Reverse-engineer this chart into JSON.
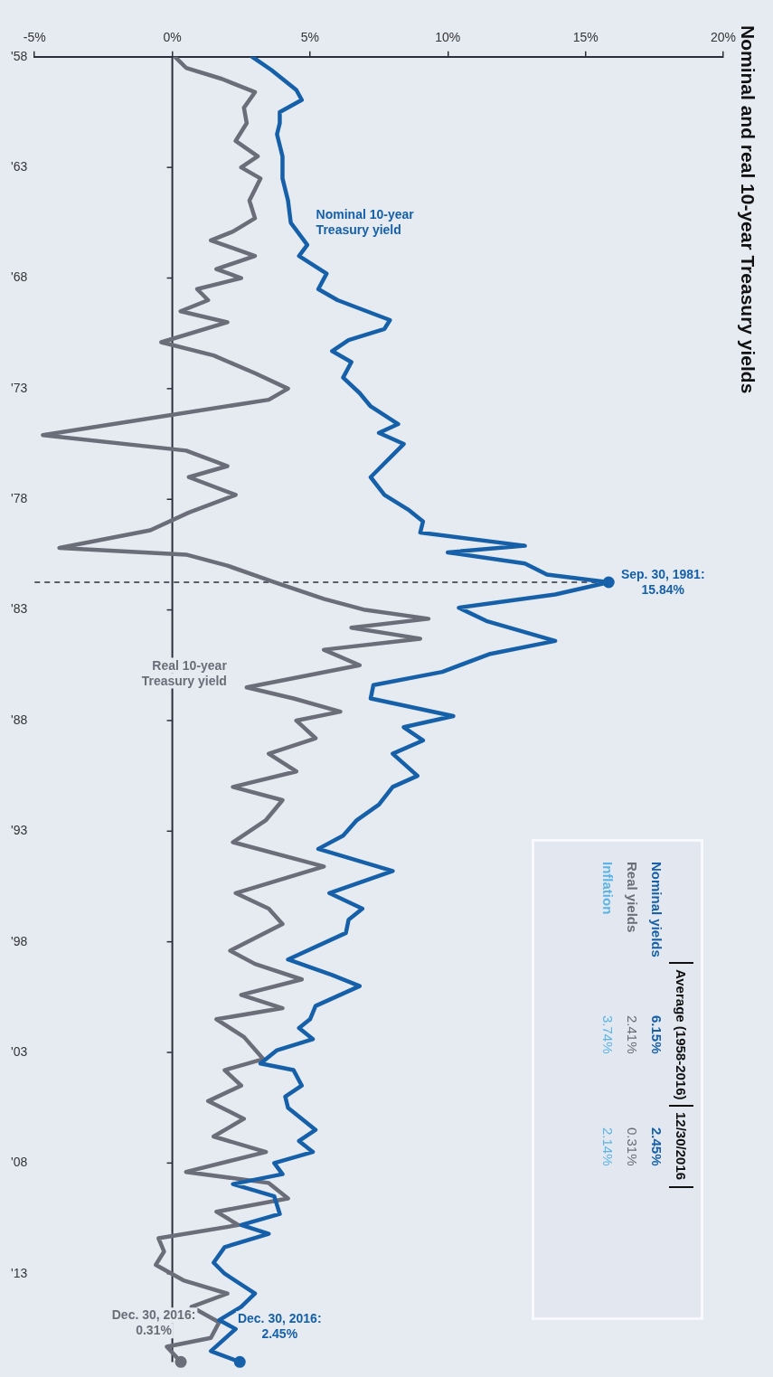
{
  "chart_data": [
    {
      "type": "line",
      "title": "Nominal and real 10-year Treasury yields",
      "orientation": "horizontal",
      "xlim": [
        -5,
        20
      ],
      "xticks": [
        {
          "value": -5,
          "label": "-5%"
        },
        {
          "value": 0,
          "label": "0%"
        },
        {
          "value": 5,
          "label": "5%"
        },
        {
          "value": 10,
          "label": "10%"
        },
        {
          "value": 15,
          "label": "15%"
        },
        {
          "value": 20,
          "label": "20%"
        }
      ],
      "ylim": [
        2017,
        1958
      ],
      "yticks": [
        {
          "value": 1958,
          "label": "'58"
        },
        {
          "value": 1963,
          "label": "'63"
        },
        {
          "value": 1968,
          "label": "'68"
        },
        {
          "value": 1973,
          "label": "'73"
        },
        {
          "value": 1978,
          "label": "'78"
        },
        {
          "value": 1983,
          "label": "'83"
        },
        {
          "value": 1988,
          "label": "'88"
        },
        {
          "value": 1993,
          "label": "'93"
        },
        {
          "value": 1998,
          "label": "'98"
        },
        {
          "value": 2003,
          "label": "'03"
        },
        {
          "value": 2008,
          "label": "'08"
        },
        {
          "value": 2013,
          "label": "'13"
        }
      ],
      "grid": false,
      "legend": false,
      "marker": "none",
      "line_style": "solid",
      "series": [
        {
          "name": "Nominal 10-year Treasury yield",
          "color": "#1560a8",
          "x": [
            1958.0,
            1958.6,
            1959.5,
            1959.95,
            1960.5,
            1961.0,
            1961.5,
            1962.5,
            1963.5,
            1964.5,
            1965.5,
            1966.5,
            1967.0,
            1967.8,
            1968.5,
            1969.0,
            1969.9,
            1970.3,
            1970.8,
            1971.3,
            1971.8,
            1972.5,
            1973.2,
            1973.8,
            1974.6,
            1975.0,
            1975.5,
            1976.5,
            1977.0,
            1977.8,
            1978.5,
            1979.0,
            1979.5,
            1980.1,
            1980.4,
            1980.9,
            1981.4,
            1981.75,
            1982.3,
            1982.9,
            1983.5,
            1984.4,
            1985.0,
            1985.8,
            1986.4,
            1987.0,
            1987.8,
            1988.3,
            1988.9,
            1989.5,
            1990.5,
            1991.0,
            1991.8,
            1992.5,
            1993.2,
            1993.8,
            1994.8,
            1995.8,
            1996.5,
            1997.0,
            1997.6,
            1998.8,
            1999.5,
            2000.0,
            2000.9,
            2001.5,
            2001.9,
            2002.4,
            2002.9,
            2003.5,
            2003.8,
            2004.5,
            2005.0,
            2005.5,
            2006.5,
            2007.0,
            2007.5,
            2008.0,
            2008.5,
            2008.95,
            2009.5,
            2010.3,
            2010.8,
            2011.2,
            2011.8,
            2012.5,
            2013.0,
            2013.9,
            2014.5,
            2015.1,
            2015.5,
            2016.5,
            2016.99
          ],
          "values": [
            2.9,
            3.6,
            4.5,
            4.7,
            3.9,
            3.9,
            3.8,
            4.0,
            4.0,
            4.2,
            4.3,
            4.9,
            4.6,
            5.6,
            5.3,
            6.0,
            7.9,
            7.7,
            6.4,
            5.8,
            6.5,
            6.2,
            6.8,
            7.2,
            8.2,
            7.5,
            8.4,
            7.6,
            7.2,
            7.7,
            8.6,
            9.1,
            9.0,
            12.8,
            10.0,
            12.8,
            13.6,
            15.84,
            13.9,
            10.4,
            11.4,
            13.9,
            11.5,
            9.8,
            7.3,
            7.2,
            10.2,
            8.4,
            9.1,
            8.0,
            8.9,
            8.0,
            7.5,
            6.7,
            6.2,
            5.3,
            8.0,
            5.7,
            6.9,
            6.4,
            6.3,
            4.2,
            5.8,
            6.8,
            5.2,
            5.0,
            4.6,
            5.1,
            3.8,
            3.2,
            4.4,
            4.7,
            4.1,
            4.2,
            5.2,
            4.6,
            5.1,
            3.7,
            4.0,
            2.2,
            3.7,
            3.9,
            2.5,
            3.5,
            1.9,
            1.5,
            1.9,
            3.0,
            2.5,
            1.7,
            2.3,
            1.4,
            2.45
          ]
        },
        {
          "name": "Real 10-year Treasury yield",
          "color": "#6b6d78",
          "x": [
            1958.0,
            1958.5,
            1959.0,
            1959.6,
            1960.3,
            1961.0,
            1961.8,
            1962.5,
            1963.0,
            1963.5,
            1964.5,
            1965.3,
            1965.9,
            1966.3,
            1967.0,
            1967.6,
            1968.0,
            1968.5,
            1969.0,
            1969.5,
            1970.0,
            1970.9,
            1971.5,
            1972.3,
            1973.0,
            1973.5,
            1975.1,
            1975.8,
            1976.5,
            1977.0,
            1977.8,
            1978.6,
            1979.4,
            1980.2,
            1980.5,
            1981.0,
            1981.75,
            1982.5,
            1983.0,
            1983.4,
            1983.8,
            1984.3,
            1984.8,
            1985.5,
            1986.5,
            1987.0,
            1987.6,
            1988.0,
            1988.8,
            1989.5,
            1990.3,
            1991.0,
            1991.6,
            1992.5,
            1993.5,
            1994.6,
            1995.8,
            1996.5,
            1997.2,
            1998.4,
            1999.0,
            1999.7,
            2000.4,
            2001.0,
            2001.5,
            2002.3,
            2003.3,
            2003.8,
            2004.5,
            2005.2,
            2006.0,
            2006.8,
            2007.5,
            2008.4,
            2008.9,
            2009.6,
            2010.2,
            2010.8,
            2011.4,
            2012.0,
            2012.6,
            2013.3,
            2013.9,
            2014.5,
            2015.2,
            2015.9,
            2016.3,
            2016.99
          ],
          "values": [
            0.1,
            0.5,
            1.8,
            3.0,
            2.6,
            2.7,
            2.3,
            3.1,
            2.5,
            3.2,
            2.8,
            3.0,
            2.2,
            1.4,
            3.0,
            1.6,
            2.5,
            0.9,
            1.3,
            0.3,
            2.0,
            -0.4,
            1.5,
            3.0,
            4.2,
            3.5,
            -4.7,
            0.5,
            2.0,
            0.6,
            2.3,
            0.6,
            -0.8,
            -4.1,
            0.5,
            2.0,
            3.7,
            5.5,
            7.0,
            9.3,
            6.5,
            9.0,
            5.5,
            6.8,
            2.7,
            4.4,
            6.1,
            4.5,
            5.2,
            3.5,
            4.5,
            2.2,
            4.0,
            3.4,
            2.2,
            5.5,
            2.3,
            3.5,
            4.0,
            2.1,
            3.0,
            4.7,
            2.5,
            4.0,
            1.6,
            2.6,
            3.3,
            1.9,
            2.5,
            1.3,
            2.6,
            1.5,
            3.4,
            0.5,
            3.5,
            4.2,
            1.6,
            2.4,
            -0.5,
            -0.3,
            -0.6,
            0.4,
            2.0,
            0.7,
            1.7,
            1.4,
            -0.2,
            0.31
          ]
        }
      ],
      "ref_lines": [
        {
          "axis": "x",
          "value": 0,
          "color": "#2b2f3a",
          "line_style": "solid"
        },
        {
          "axis": "y",
          "value": 1981.75,
          "color": "#2b2f3a",
          "line_style": "dashed"
        }
      ],
      "annotations": [
        {
          "text": "Sep. 30, 1981: 15.84%",
          "x": 15.84,
          "y": 1981.75
        },
        {
          "text": "Dec. 30, 2016: 2.45%",
          "x": 2.45,
          "y": 2016.99
        },
        {
          "text": "Dec. 30, 2016: 0.31%",
          "x": 0.31,
          "y": 2016.99
        }
      ]
    },
    {
      "type": "other",
      "categories": [
        "Nominal yields",
        "Real yields",
        "Inflation"
      ],
      "colors": [
        "#1560a8",
        "#6b6d78",
        "#5bb4e5"
      ],
      "series": [
        {
          "name": "Average (1958-2016)",
          "values": [
            6.15,
            2.41,
            3.74
          ],
          "value_labels": [
            "6.15%",
            "2.41%",
            "3.74%"
          ]
        },
        {
          "name": "12/30/2016",
          "values": [
            2.45,
            0.31,
            2.14
          ],
          "value_labels": [
            "2.45%",
            "0.31%",
            "2.14%"
          ]
        }
      ]
    }
  ]
}
